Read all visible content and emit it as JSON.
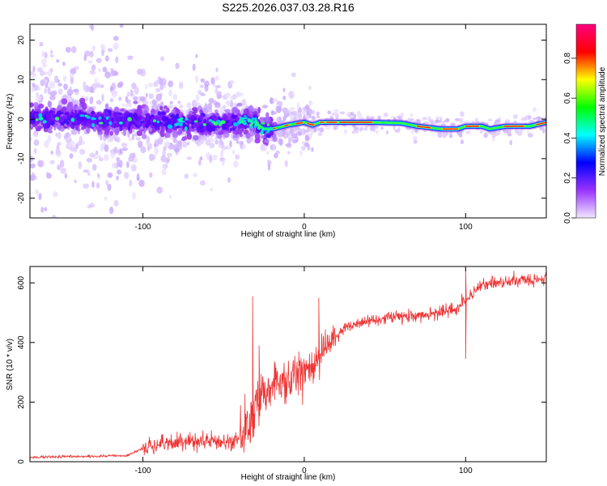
{
  "figure": {
    "title": "S225.2026.037.03.28.R16"
  },
  "chart_data": [
    {
      "type": "heatmap",
      "xlabel": "Height of straight line (km)",
      "ylabel": "Frequency (Hz)",
      "xlim": [
        -170,
        150
      ],
      "ylim": [
        -25,
        24
      ],
      "xticks": [
        -100,
        0,
        100
      ],
      "yticks": [
        -20,
        -10,
        0,
        10,
        20
      ],
      "colorbar": {
        "label": "Normalized spectral amplitude",
        "range": [
          0,
          0.97
        ],
        "ticks": [
          0.0,
          0.2,
          0.4,
          0.6,
          0.8
        ],
        "colormap": [
          "#f0e6ff",
          "#9933ff",
          "#0000ff",
          "#00ffff",
          "#00ff00",
          "#ffff00",
          "#ff0000",
          "#ff0080"
        ]
      },
      "carrier_track": [
        {
          "x": -170,
          "y": 0.5
        },
        {
          "x": -100,
          "y": -0.5
        },
        {
          "x": -50,
          "y": -1.0
        },
        {
          "x": -32,
          "y": -0.5
        },
        {
          "x": -25,
          "y": -2.5
        },
        {
          "x": -20,
          "y": -2.5
        },
        {
          "x": -10,
          "y": -1.5
        },
        {
          "x": 0,
          "y": -0.8
        },
        {
          "x": 5,
          "y": -1.5
        },
        {
          "x": 10,
          "y": -0.8
        },
        {
          "x": 40,
          "y": -0.8
        },
        {
          "x": 60,
          "y": -1.0
        },
        {
          "x": 70,
          "y": -1.8
        },
        {
          "x": 85,
          "y": -2.5
        },
        {
          "x": 95,
          "y": -2.5
        },
        {
          "x": 100,
          "y": -1.8
        },
        {
          "x": 110,
          "y": -1.8
        },
        {
          "x": 115,
          "y": -2.5
        },
        {
          "x": 125,
          "y": -1.8
        },
        {
          "x": 140,
          "y": -1.8
        },
        {
          "x": 150,
          "y": -0.8
        }
      ]
    },
    {
      "type": "line",
      "xlabel": "Height of straight line (km)",
      "ylabel": "SNR (10 * v/v)",
      "xlim": [
        -170,
        150
      ],
      "ylim": [
        0,
        655
      ],
      "xticks": [
        -100,
        0,
        100
      ],
      "yticks": [
        0,
        200,
        400,
        600
      ],
      "color": "#ee3333",
      "trend": [
        {
          "x": -170,
          "y": 15
        },
        {
          "x": -110,
          "y": 20
        },
        {
          "x": -100,
          "y": 45
        },
        {
          "x": -80,
          "y": 65
        },
        {
          "x": -60,
          "y": 70
        },
        {
          "x": -45,
          "y": 60
        },
        {
          "x": -35,
          "y": 110
        },
        {
          "x": -25,
          "y": 250
        },
        {
          "x": -15,
          "y": 270
        },
        {
          "x": -5,
          "y": 290
        },
        {
          "x": 5,
          "y": 310
        },
        {
          "x": 15,
          "y": 390
        },
        {
          "x": 25,
          "y": 450
        },
        {
          "x": 40,
          "y": 475
        },
        {
          "x": 60,
          "y": 490
        },
        {
          "x": 80,
          "y": 495
        },
        {
          "x": 95,
          "y": 515
        },
        {
          "x": 110,
          "y": 595
        },
        {
          "x": 130,
          "y": 605
        },
        {
          "x": 150,
          "y": 615
        }
      ],
      "spikes": [
        {
          "x": -32,
          "y": 555
        },
        {
          "x": -28,
          "y": 390
        },
        {
          "x": 9,
          "y": 550
        },
        {
          "x": 100,
          "y": 650
        },
        {
          "x": 100,
          "y": 345
        }
      ]
    }
  ]
}
